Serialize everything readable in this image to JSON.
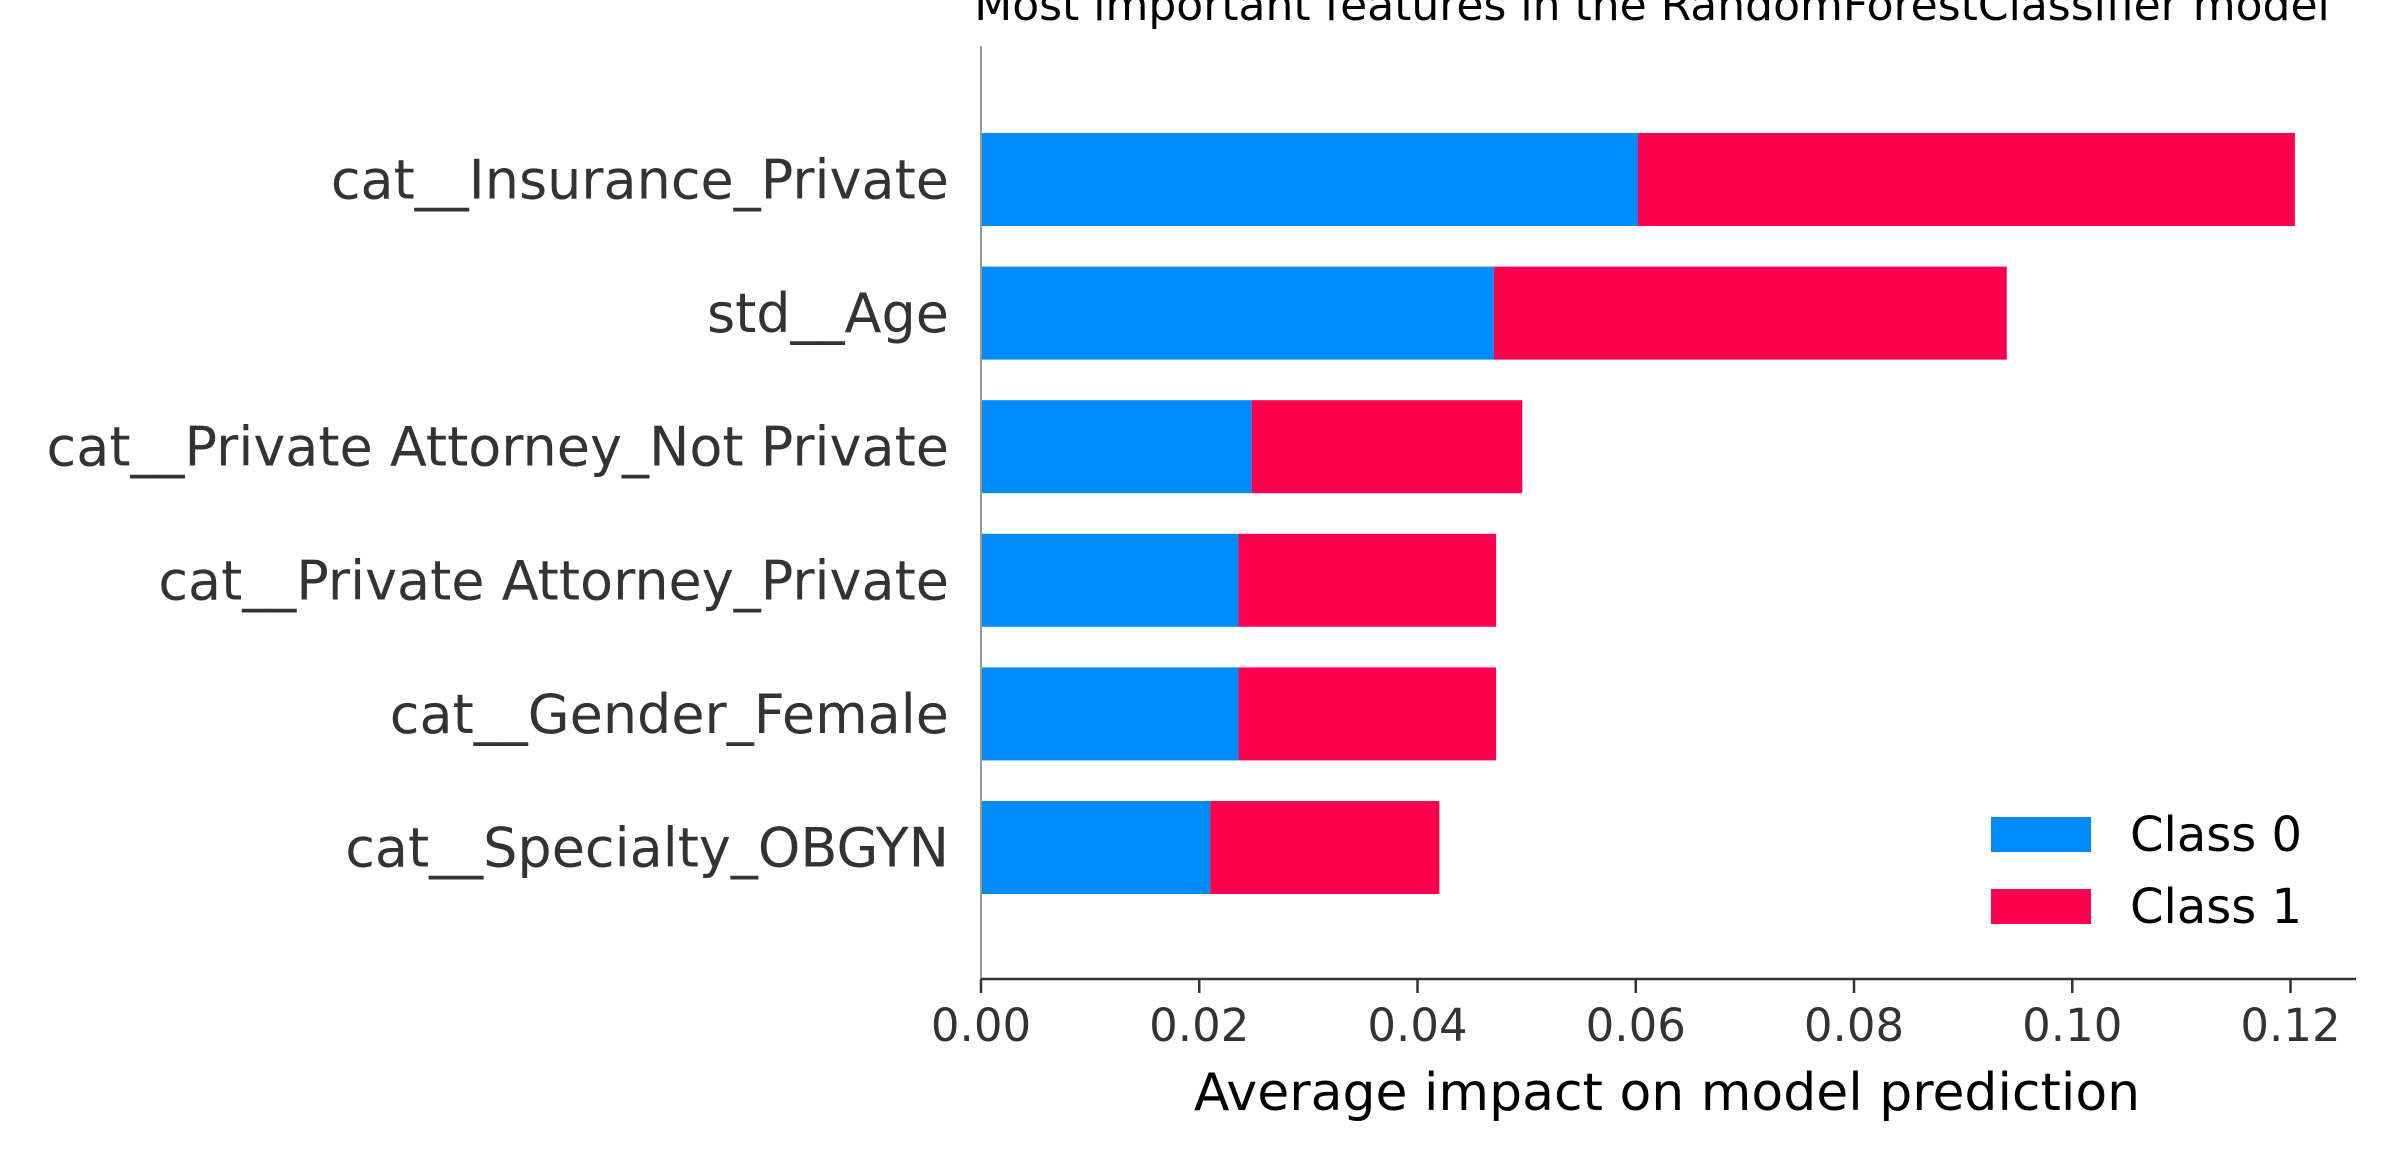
{
  "chart_data": {
    "type": "bar",
    "orientation": "horizontal",
    "stacked": true,
    "title": "Most important features in the RandomForestClassifier model",
    "xlabel": "Average impact on model prediction",
    "ylabel": "",
    "xlim": [
      0,
      0.126
    ],
    "xticks": [
      "0.00",
      "0.02",
      "0.04",
      "0.06",
      "0.08",
      "0.10",
      "0.12"
    ],
    "categories": [
      "cat__Insurance_Private",
      "std__Age",
      "cat__Private Attorney_Not Private",
      "cat__Private Attorney_Private",
      "cat__Gender_Female",
      "cat__Specialty_OBGYN"
    ],
    "series": [
      {
        "name": "Class 0",
        "color": "#008bfb",
        "values": [
          0.0602,
          0.047,
          0.0248,
          0.0236,
          0.0236,
          0.021
        ]
      },
      {
        "name": "Class 1",
        "color": "#ff0051",
        "values": [
          0.0602,
          0.047,
          0.0248,
          0.0236,
          0.0236,
          0.021
        ]
      }
    ],
    "grid": false,
    "legend_position": "lower-right"
  }
}
